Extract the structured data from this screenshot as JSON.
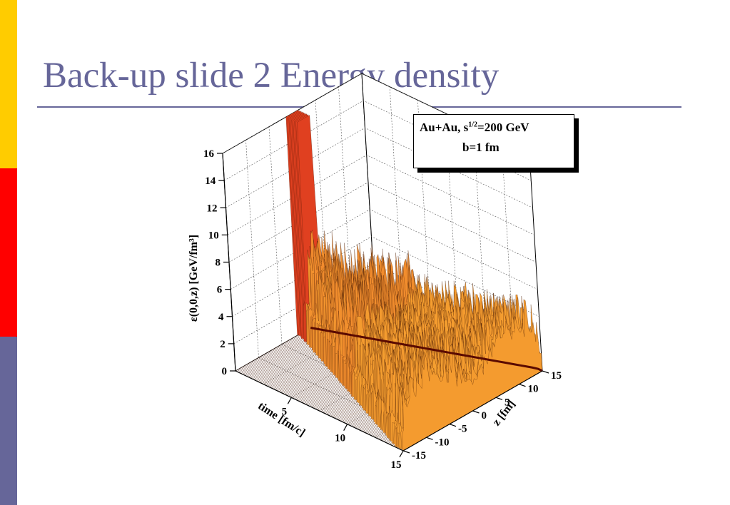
{
  "slide": {
    "title": "Back-up slide 2 Energy density",
    "stripe_colors": [
      "#FFCC00",
      "#FF0000",
      "#666699"
    ],
    "title_color": "#666699",
    "rule_color": "#666699"
  },
  "legend": {
    "line1_prefix": "Au+Au, s",
    "line1_sup": "1/2",
    "line1_suffix": "=200 GeV",
    "line2": "b=1 fm"
  },
  "chart_data": {
    "type": "surface3d",
    "zlabel": "ε(0,0,z) [GeV/fm³]",
    "xlabel": "time [fm/c]",
    "ylabel": "z [fm]",
    "z_ticks": [
      "0",
      "2",
      "4",
      "6",
      "8",
      "10",
      "12",
      "14",
      "16"
    ],
    "time_ticks": [
      "5",
      "10",
      "15"
    ],
    "space_ticks": [
      "-15",
      "-10",
      "-5",
      "0",
      "5",
      "10",
      "15"
    ],
    "zlim": [
      0,
      16
    ],
    "time_range": [
      0,
      15
    ],
    "z_range": [
      -15,
      15
    ],
    "grid": true,
    "colors": {
      "low": "#ffff66",
      "mid": "#f5a030",
      "high": "#e04020",
      "edge": "#5a0a00"
    },
    "features": {
      "initial_plateau": {
        "time_range": [
          0,
          1
        ],
        "z_range": [
          -1.5,
          1.5
        ],
        "value": 16
      },
      "initial_edge_value": 1,
      "late_fluctuation_mean": 2.5,
      "late_fluctuation_max": 9
    }
  }
}
